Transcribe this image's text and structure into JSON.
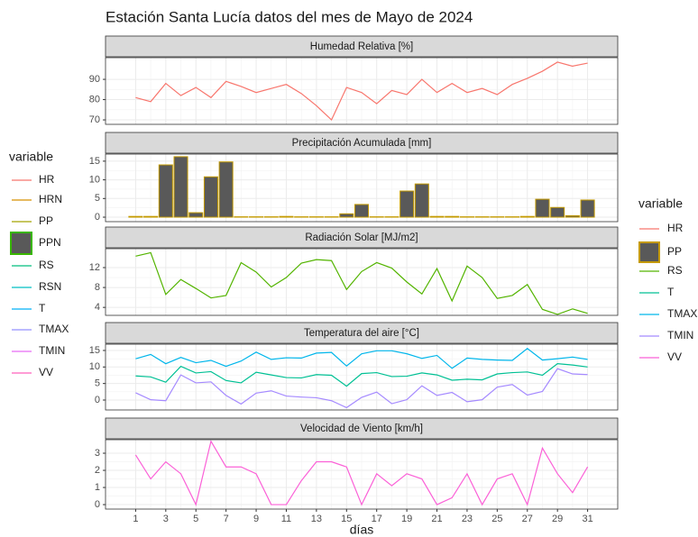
{
  "title": "Estación Santa Lucía datos del mes de Mayo de 2024",
  "x_label": "días",
  "legend_left": {
    "title": "variable",
    "items": [
      {
        "name": "HR",
        "color": "#F8766D",
        "kind": "line"
      },
      {
        "name": "HRN",
        "color": "#D89000",
        "kind": "line"
      },
      {
        "name": "PP",
        "color": "#A3A500",
        "kind": "line"
      },
      {
        "name": "PPN",
        "color": "#39B600",
        "kind": "box"
      },
      {
        "name": "RS",
        "color": "#00BF7D",
        "kind": "line"
      },
      {
        "name": "RSN",
        "color": "#00BFC4",
        "kind": "line"
      },
      {
        "name": "T",
        "color": "#00B0F6",
        "kind": "line"
      },
      {
        "name": "TMAX",
        "color": "#9590FF",
        "kind": "line"
      },
      {
        "name": "TMIN",
        "color": "#E76BF3",
        "kind": "line"
      },
      {
        "name": "VV",
        "color": "#FF62BC",
        "kind": "line"
      }
    ]
  },
  "legend_right_title": "variable",
  "chart_data": [
    {
      "type": "line",
      "title": "Humedad Relativa [%]",
      "grid": true,
      "x": [
        1,
        2,
        3,
        4,
        5,
        6,
        7,
        8,
        9,
        10,
        11,
        12,
        13,
        14,
        15,
        16,
        17,
        18,
        19,
        20,
        21,
        22,
        23,
        24,
        25,
        26,
        27,
        28,
        29,
        30,
        31
      ],
      "xlim": [
        -1,
        33
      ],
      "ylim": [
        67.8,
        100.7
      ],
      "yticks": [
        70,
        80,
        90
      ],
      "series": [
        {
          "name": "HR",
          "color": "#F8766D",
          "values": [
            81,
            79,
            88,
            82,
            86,
            81,
            89,
            86.5,
            83.5,
            85.5,
            87.5,
            83,
            77,
            70,
            86,
            83.5,
            78,
            84.5,
            82.5,
            90,
            83.5,
            88,
            83.5,
            85.5,
            82.5,
            87.5,
            90.5,
            94,
            98.5,
            96.5,
            98
          ]
        }
      ]
    },
    {
      "type": "bar",
      "title": "Precipitación Acumulada [mm]",
      "grid": true,
      "x": [
        1,
        2,
        3,
        4,
        5,
        6,
        7,
        8,
        9,
        10,
        11,
        12,
        13,
        14,
        15,
        16,
        17,
        18,
        19,
        20,
        21,
        22,
        23,
        24,
        25,
        26,
        27,
        28,
        29,
        30,
        31
      ],
      "xlim": [
        -1,
        33
      ],
      "ylim": [
        -1.2,
        16.9
      ],
      "yticks": [
        0,
        5,
        10,
        15
      ],
      "series": [
        {
          "name": "PP",
          "color": "#C49A00",
          "fill": "#595959",
          "values": [
            0.2,
            0.2,
            14,
            16.2,
            1.2,
            10.8,
            14.8,
            0.1,
            0.1,
            0.1,
            0.2,
            0.1,
            0.1,
            0.1,
            0.9,
            3.4,
            0.1,
            0.1,
            7,
            8.9,
            0.2,
            0.2,
            0.1,
            0.1,
            0.1,
            0.1,
            0.2,
            4.8,
            2.6,
            0.4,
            4.6
          ]
        }
      ]
    },
    {
      "type": "line",
      "title": "Radiación Solar [MJ/m2]",
      "grid": true,
      "x": [
        1,
        2,
        3,
        4,
        5,
        6,
        7,
        8,
        9,
        10,
        11,
        12,
        13,
        14,
        15,
        16,
        17,
        18,
        19,
        20,
        21,
        22,
        23,
        24,
        25,
        26,
        27,
        28,
        29,
        30,
        31
      ],
      "xlim": [
        -1,
        33
      ],
      "ylim": [
        2.4,
        15.8
      ],
      "yticks": [
        4,
        8,
        12
      ],
      "series": [
        {
          "name": "RS",
          "color": "#53B400",
          "values": [
            14.3,
            15,
            6.6,
            9.6,
            7.8,
            5.9,
            6.4,
            13,
            11.1,
            8.1,
            10,
            12.9,
            13.6,
            13.4,
            7.6,
            11.2,
            13,
            11.9,
            9.1,
            6.7,
            11.8,
            5.3,
            12.3,
            10,
            5.8,
            6.4,
            8.6,
            3.6,
            2.6,
            3.7,
            2.8
          ]
        }
      ]
    },
    {
      "type": "line",
      "title": "Temperatura del aire [°C]",
      "grid": true,
      "x": [
        1,
        2,
        3,
        4,
        5,
        6,
        7,
        8,
        9,
        10,
        11,
        12,
        13,
        14,
        15,
        16,
        17,
        18,
        19,
        20,
        21,
        22,
        23,
        24,
        25,
        26,
        27,
        28,
        29,
        30,
        31
      ],
      "xlim": [
        -1,
        33
      ],
      "ylim": [
        -3,
        16.9
      ],
      "yticks": [
        0,
        5,
        10,
        15
      ],
      "series": [
        {
          "name": "T",
          "color": "#00C094",
          "values": [
            7.3,
            7,
            5.4,
            10.2,
            8.2,
            8.6,
            5.9,
            5.2,
            8.4,
            7.6,
            6.8,
            6.7,
            7.7,
            7.5,
            4.2,
            8,
            8.3,
            7.1,
            7.2,
            8.2,
            7.6,
            6,
            6.3,
            6.1,
            7.9,
            8.3,
            8.5,
            7.5,
            11,
            10.6,
            10
          ]
        },
        {
          "name": "TMAX",
          "color": "#00B6EB",
          "values": [
            12.5,
            13.8,
            11,
            12.9,
            11.3,
            12,
            10.2,
            11.8,
            14.5,
            12.3,
            12.8,
            12.7,
            14.2,
            14.4,
            10.3,
            14,
            14.9,
            14.9,
            14,
            12.6,
            13.5,
            9.6,
            12.7,
            12.3,
            12.1,
            12,
            15.6,
            12.1,
            12.5,
            13,
            12.3
          ]
        },
        {
          "name": "TMIN",
          "color": "#A58AFF",
          "values": [
            2.2,
            0.1,
            -0.2,
            7.6,
            5.2,
            5.5,
            1.4,
            -1.2,
            2.1,
            2.8,
            1.2,
            0.9,
            0.7,
            -0.2,
            -2.3,
            0.8,
            2.4,
            -1.1,
            0.1,
            4.3,
            1.4,
            2.3,
            -0.5,
            0.1,
            3.9,
            4.7,
            1.5,
            2.6,
            9.5,
            7.9,
            7.7
          ]
        }
      ]
    },
    {
      "type": "line",
      "title": "Velocidad de Viento [km/h]",
      "grid": true,
      "x": [
        1,
        2,
        3,
        4,
        5,
        6,
        7,
        8,
        9,
        10,
        11,
        12,
        13,
        14,
        15,
        16,
        17,
        18,
        19,
        20,
        21,
        22,
        23,
        24,
        25,
        26,
        27,
        28,
        29,
        30,
        31
      ],
      "xlim": [
        -1,
        33
      ],
      "ylim": [
        -0.26,
        3.79
      ],
      "yticks": [
        0,
        1,
        2,
        3
      ],
      "xticks": [
        1,
        3,
        5,
        7,
        9,
        11,
        13,
        15,
        17,
        19,
        21,
        23,
        25,
        27,
        29,
        31
      ],
      "series": [
        {
          "name": "VV",
          "color": "#FB61D7",
          "values": [
            2.9,
            1.5,
            2.5,
            1.8,
            0,
            3.7,
            2.2,
            2.2,
            1.8,
            0,
            0,
            1.4,
            2.5,
            2.5,
            2.2,
            0,
            1.8,
            1.1,
            1.8,
            1.5,
            0,
            0.4,
            1.8,
            0,
            1.5,
            1.8,
            0,
            3.3,
            1.8,
            0.7,
            2.2
          ]
        }
      ]
    }
  ]
}
